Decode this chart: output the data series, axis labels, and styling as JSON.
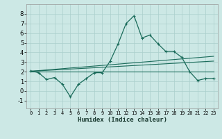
{
  "xlabel": "Humidex (Indice chaleur)",
  "bg_color": "#cce8e5",
  "grid_color": "#aacfcc",
  "line_color": "#1a6b5a",
  "xlim": [
    -0.5,
    23.5
  ],
  "ylim": [
    -1.8,
    9.0
  ],
  "xticks": [
    0,
    1,
    2,
    3,
    4,
    5,
    6,
    7,
    8,
    9,
    10,
    11,
    12,
    13,
    14,
    15,
    16,
    17,
    18,
    19,
    20,
    21,
    22,
    23
  ],
  "yticks": [
    -1,
    0,
    1,
    2,
    3,
    4,
    5,
    6,
    7,
    8
  ],
  "main_x": [
    0,
    1,
    2,
    3,
    4,
    5,
    6,
    7,
    8,
    9,
    10,
    11,
    12,
    13,
    14,
    15,
    16,
    17,
    18,
    19,
    20,
    21,
    22,
    23
  ],
  "main_y": [
    2.1,
    1.9,
    1.2,
    1.4,
    0.7,
    -0.6,
    0.7,
    1.3,
    1.9,
    1.9,
    3.1,
    4.9,
    7.0,
    7.8,
    5.5,
    5.8,
    4.9,
    4.1,
    4.1,
    3.5,
    2.0,
    1.1,
    1.3,
    1.3
  ],
  "reg_line1_x": [
    0,
    23
  ],
  "reg_line1_y": [
    2.05,
    3.6
  ],
  "reg_line2_x": [
    0,
    23
  ],
  "reg_line2_y": [
    2.05,
    2.05
  ],
  "reg_line3_x": [
    0,
    23
  ],
  "reg_line3_y": [
    2.05,
    3.1
  ]
}
